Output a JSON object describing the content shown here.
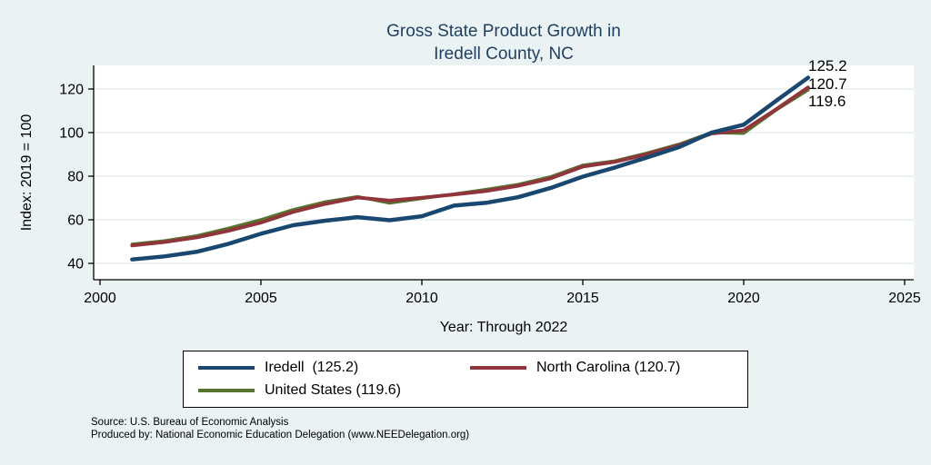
{
  "title": {
    "line1": "Gross State Product Growth in",
    "line2": "Iredell County, NC"
  },
  "chart_data": {
    "type": "line",
    "title": "Gross State Product Growth in Iredell County, NC",
    "xlabel": "Year: Through 2022",
    "ylabel": "Index: 2019 = 100",
    "xlim": [
      2000,
      2025
    ],
    "ylim": [
      40,
      130
    ],
    "x_ticks": [
      2000,
      2005,
      2010,
      2015,
      2020,
      2025
    ],
    "y_ticks": [
      40,
      60,
      80,
      100,
      120
    ],
    "grid": "horizontal",
    "legend_position": "bottom",
    "x": [
      2001,
      2002,
      2003,
      2004,
      2005,
      2006,
      2007,
      2008,
      2009,
      2010,
      2011,
      2012,
      2013,
      2014,
      2015,
      2016,
      2017,
      2018,
      2019,
      2020,
      2021,
      2022
    ],
    "series": [
      {
        "name": "Iredell",
        "legend_label": "Iredell  (125.2)",
        "color": "#1a476f",
        "line_width": 4.5,
        "values": [
          41.8,
          43.2,
          45.3,
          49.0,
          53.6,
          57.5,
          59.6,
          61.2,
          59.8,
          61.6,
          66.5,
          67.8,
          70.4,
          74.6,
          79.8,
          84.0,
          88.6,
          93.4,
          100.0,
          103.6,
          114.5,
          125.2
        ]
      },
      {
        "name": "North Carolina",
        "legend_label": "North Carolina (120.7)",
        "color": "#90353b",
        "line_width": 4,
        "values": [
          48.2,
          49.8,
          51.9,
          55.0,
          58.7,
          63.6,
          67.3,
          70.2,
          68.8,
          70.1,
          71.6,
          73.2,
          75.6,
          79.0,
          84.4,
          86.6,
          90.1,
          94.2,
          99.6,
          101.0,
          110.6,
          120.7
        ]
      },
      {
        "name": "United States",
        "legend_label": "United States (119.6)",
        "color": "#55752f",
        "line_width": 3.5,
        "values": [
          48.8,
          50.3,
          52.6,
          56.1,
          60.0,
          64.6,
          68.2,
          70.6,
          67.7,
          69.8,
          71.8,
          73.9,
          76.2,
          79.7,
          85.0,
          87.0,
          90.6,
          94.7,
          100.0,
          99.7,
          110.3,
          119.6
        ]
      }
    ],
    "end_labels": [
      "125.2",
      "120.7",
      "119.6"
    ]
  },
  "notes": {
    "line1": "Source: U.S. Bureau of Economic Analysis",
    "line2": "Produced by: National Economic Education Delegation (www.NEEDelegation.org)"
  },
  "colors": {
    "background": "#eaf2f3",
    "plot_background": "#ffffff",
    "gridline": "#dde9ec",
    "axis": "#000000",
    "title_text": "#1e3f5f"
  }
}
